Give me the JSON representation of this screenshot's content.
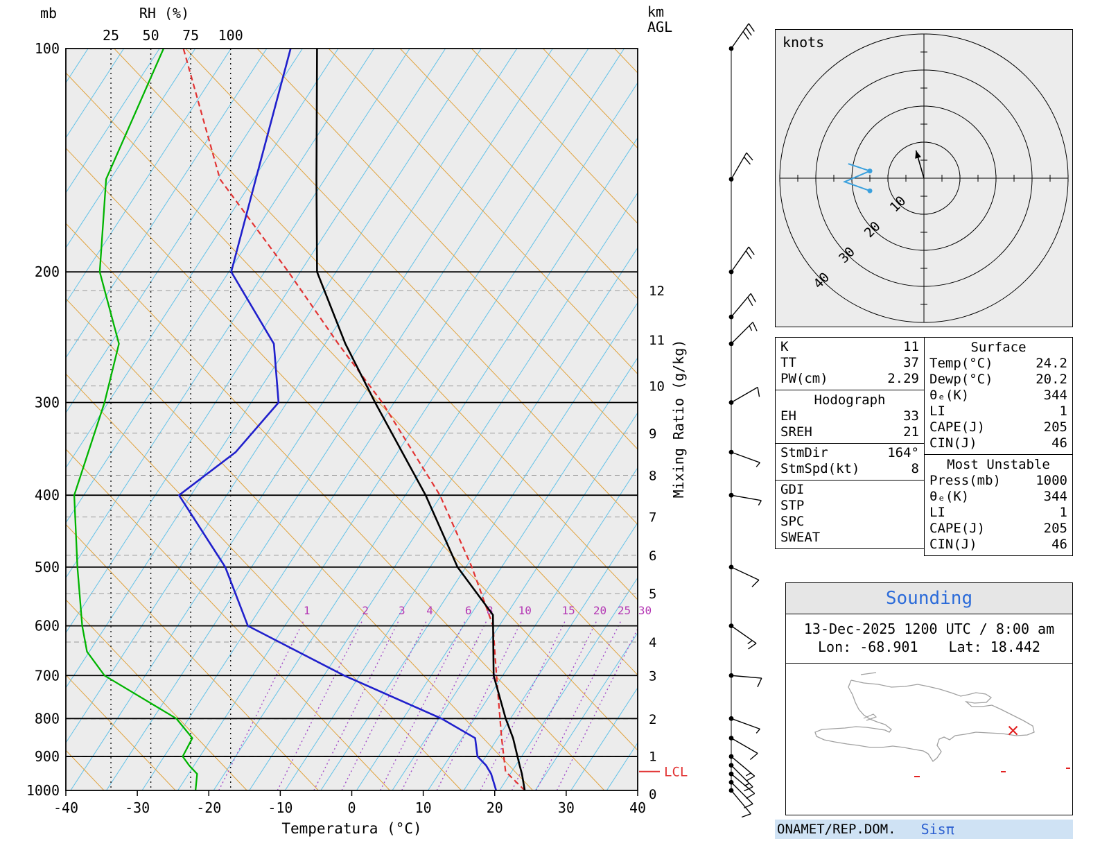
{
  "footer": {
    "left": "ONAMET/REP.DOM.",
    "brand": "Sisπ"
  },
  "sounding_info": {
    "title": "Sounding",
    "datetime": "13-Dec-2025 1200 UTC / 8:00 am",
    "lon": "Lon: -68.901",
    "lat": "Lat: 18.442"
  },
  "map": {
    "station_lon": -68.901,
    "station_lat": 18.442
  },
  "hodograph": {
    "unit": "knots",
    "rings_kt": [
      10,
      20,
      30,
      40
    ],
    "trace_uv": [
      [
        -21,
        4
      ],
      [
        -15,
        2
      ],
      [
        -22,
        -1
      ],
      [
        -15,
        -3.5
      ]
    ],
    "dot_indices": [
      1,
      3
    ],
    "storm_dir_deg": 164,
    "storm_spd_kt": 8
  },
  "tables": {
    "left": [
      {
        "rows": [
          [
            "K",
            "11"
          ],
          [
            "TT",
            "37"
          ],
          [
            "PW(cm)",
            "2.29"
          ]
        ]
      },
      {
        "title": "Hodograph",
        "rows": [
          [
            "EH",
            "33"
          ],
          [
            "SREH",
            "21"
          ]
        ]
      },
      {
        "rows": [
          [
            "StmDir",
            "164°"
          ],
          [
            "StmSpd(kt)",
            "8"
          ]
        ]
      },
      {
        "rows": [
          [
            "GDI",
            ""
          ],
          [
            "STP",
            ""
          ],
          [
            "SPC",
            ""
          ],
          [
            "SWEAT",
            ""
          ]
        ]
      }
    ],
    "right": [
      {
        "title": "Surface",
        "rows": [
          [
            "Temp(°C)",
            "24.2"
          ],
          [
            "Dewp(°C)",
            "20.2"
          ],
          [
            "θₑ(K)",
            "344"
          ],
          [
            "LI",
            "1"
          ],
          [
            "CAPE(J)",
            "205"
          ],
          [
            "CIN(J)",
            "46"
          ]
        ]
      },
      {
        "title": "Most Unstable",
        "rows": [
          [
            "Press(mb)",
            "1000"
          ],
          [
            "θₑ(K)",
            "344"
          ],
          [
            "LI",
            "1"
          ],
          [
            "CAPE(J)",
            "205"
          ],
          [
            "CIN(J)",
            "46"
          ]
        ]
      }
    ]
  },
  "chart_data": {
    "type": "line",
    "title": "Skew-T Log-P Sounding",
    "x_axis": {
      "label": "Temperatura (°C)",
      "ticks": [
        -40,
        -30,
        -20,
        -10,
        0,
        10,
        20,
        30,
        40
      ]
    },
    "y_axis": {
      "label": "mb",
      "scale": "log",
      "ticks": [
        100,
        200,
        300,
        400,
        500,
        600,
        700,
        800,
        900,
        1000
      ]
    },
    "rh_axis": {
      "label": "RH (%)",
      "ticks": [
        25,
        50,
        75,
        100
      ]
    },
    "km_axis": {
      "unit_lines": [
        "km",
        "AGL"
      ],
      "ticks": [
        0,
        1,
        2,
        3,
        4,
        5,
        6,
        7,
        8,
        9,
        10,
        11,
        12
      ]
    },
    "mixing_ratio": {
      "label": "Mixing Ratio (g/kg)",
      "lines_g_kg": [
        1,
        2,
        3,
        4,
        6,
        8,
        10,
        15,
        20,
        25,
        30
      ]
    },
    "lcl": {
      "label": "LCL",
      "pressure_mb": 943
    },
    "colors": {
      "temperature": "#000000",
      "dewpoint": "#2020cc",
      "parcel": "#e23333",
      "rh": "#00b400",
      "isotherms": "#62c2e8",
      "dry_adiabats": "#e0a23c",
      "mixing_lines": "#a24bc8",
      "mixing_labels": "#b437b4"
    },
    "series": [
      {
        "name": "temperature_C",
        "color": "#000000",
        "pressure_mb": [
          1000,
          950,
          925,
          850,
          800,
          700,
          580,
          500,
          400,
          300,
          250,
          200,
          150,
          100
        ],
        "values": [
          24.2,
          22.3,
          21.2,
          17.8,
          15.0,
          9.4,
          3.8,
          -5.5,
          -16.5,
          -32.0,
          -41.5,
          -52.0,
          -60.5,
          -72.3
        ]
      },
      {
        "name": "dewpoint_C",
        "color": "#2020cc",
        "pressure_mb": [
          1000,
          950,
          925,
          900,
          850,
          800,
          700,
          600,
          500,
          400,
          350,
          300,
          250,
          200,
          150,
          100
        ],
        "values": [
          20.2,
          18.0,
          16.5,
          14.5,
          12.5,
          6.0,
          -11.5,
          -29.5,
          -38.0,
          -51.0,
          -47.0,
          -45.5,
          -51.5,
          -64.0,
          -69.0,
          -76.0
        ]
      },
      {
        "name": "parcel_C",
        "color": "#e23333",
        "style": "dashed",
        "pressure_mb": [
          1000,
          943,
          850,
          700,
          600,
          500,
          400,
          300,
          250,
          200,
          150,
          100
        ],
        "values": [
          24.2,
          19.8,
          16.2,
          9.8,
          4.8,
          -3.5,
          -14.5,
          -31.0,
          -42.5,
          -56.0,
          -74.0,
          -91.0
        ]
      },
      {
        "name": "rh_percent",
        "color": "#00b400",
        "pressure_mb": [
          1000,
          950,
          925,
          900,
          850,
          800,
          700,
          650,
          600,
          500,
          400,
          300,
          250,
          200,
          150,
          100
        ],
        "values": [
          78,
          79,
          74,
          70,
          76,
          66,
          21,
          10,
          7,
          4,
          2,
          21,
          30,
          18,
          22,
          58
        ]
      }
    ],
    "winds_kt": [
      {
        "p": 100,
        "dir": 35,
        "spd": 30
      },
      {
        "p": 150,
        "dir": 30,
        "spd": 20
      },
      {
        "p": 200,
        "dir": 35,
        "spd": 20
      },
      {
        "p": 230,
        "dir": 40,
        "spd": 20
      },
      {
        "p": 250,
        "dir": 45,
        "spd": 15
      },
      {
        "p": 300,
        "dir": 60,
        "spd": 10
      },
      {
        "p": 350,
        "dir": 110,
        "spd": 5
      },
      {
        "p": 400,
        "dir": 100,
        "spd": 5
      },
      {
        "p": 500,
        "dir": 115,
        "spd": 10
      },
      {
        "p": 600,
        "dir": 125,
        "spd": 15
      },
      {
        "p": 700,
        "dir": 95,
        "spd": 10
      },
      {
        "p": 800,
        "dir": 110,
        "spd": 5
      },
      {
        "p": 850,
        "dir": 120,
        "spd": 10
      },
      {
        "p": 900,
        "dir": 130,
        "spd": 15
      },
      {
        "p": 925,
        "dir": 135,
        "spd": 15
      },
      {
        "p": 950,
        "dir": 130,
        "spd": 10
      },
      {
        "p": 975,
        "dir": 135,
        "spd": 10
      },
      {
        "p": 1000,
        "dir": 140,
        "spd": 10
      }
    ]
  }
}
